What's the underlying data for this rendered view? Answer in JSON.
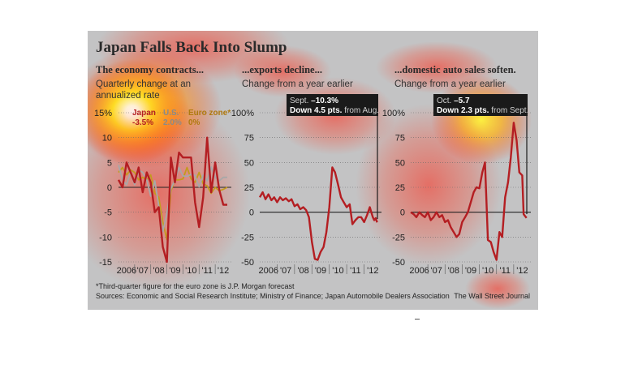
{
  "title": "Japan Falls Back Into Slump",
  "footnote": "*Third-quarter figure for the euro zone is J.P. Morgan forecast",
  "sources": "Sources: Economic and Social Research Institute; Ministry of Finance; Japan Automobile Dealers Association",
  "credit": "The Wall Street Journal",
  "colors": {
    "background": "#c3c3c4",
    "japan": "#b41e22",
    "us": "#a8a8a8",
    "eurozone": "#c49a1e",
    "callout": "#1a1a1a"
  },
  "chart_data": [
    {
      "type": "line",
      "title": "The economy contracts...",
      "subtitle": "Quarterly change at an annualized rate",
      "ylim": [
        -15,
        15
      ],
      "yticks": [
        15,
        10,
        5,
        0,
        -5,
        -10,
        -15
      ],
      "ytick_labels": [
        "15%",
        "10",
        "5",
        "0",
        "-5",
        "-10",
        "-15"
      ],
      "xtick_labels": [
        "2006",
        "'07",
        "'08",
        "'09",
        "'10",
        "'11",
        "'12"
      ],
      "xlim": [
        2006,
        2013
      ],
      "legend": [
        {
          "label": "Japan",
          "value": "-3.5%"
        },
        {
          "label": "U.S.",
          "value": "2.0%"
        },
        {
          "label": "Euro zone*",
          "value": "0%"
        }
      ],
      "series": [
        {
          "name": "Japan",
          "color": "#b41e22",
          "x": [
            2006.0,
            2006.25,
            2006.5,
            2006.75,
            2007.0,
            2007.25,
            2007.5,
            2007.75,
            2008.0,
            2008.25,
            2008.5,
            2008.75,
            2009.0,
            2009.25,
            2009.5,
            2009.75,
            2010.0,
            2010.25,
            2010.5,
            2010.75,
            2011.0,
            2011.25,
            2011.5,
            2011.75,
            2012.0,
            2012.25,
            2012.5,
            2012.75
          ],
          "y": [
            1.5,
            0,
            5,
            3,
            1,
            4,
            -1,
            3,
            1,
            -5,
            -4,
            -12,
            -15,
            6,
            1,
            7,
            6,
            6,
            6,
            -3,
            -8,
            -2,
            10,
            -1,
            5,
            -0.5,
            -3.5,
            -3.5
          ]
        },
        {
          "name": "U.S.",
          "color": "#a8a8a8",
          "x": [
            2006.0,
            2006.25,
            2006.5,
            2006.75,
            2007.0,
            2007.25,
            2007.5,
            2007.75,
            2008.0,
            2008.25,
            2008.5,
            2008.75,
            2009.0,
            2009.25,
            2009.5,
            2009.75,
            2010.0,
            2010.25,
            2010.5,
            2010.75,
            2011.0,
            2011.25,
            2011.5,
            2011.75,
            2012.0,
            2012.25,
            2012.5,
            2012.75
          ],
          "y": [
            4.5,
            1.5,
            0.5,
            3,
            0.5,
            3.5,
            3,
            1.5,
            -1.8,
            1.3,
            -3.7,
            -8.9,
            -5.3,
            -0.3,
            1.4,
            4,
            2.3,
            2.2,
            2.6,
            2.4,
            0.1,
            2.5,
            1.3,
            4.1,
            2,
            1.3,
            2,
            2
          ]
        },
        {
          "name": "Euro zone*",
          "color": "#c49a1e",
          "x": [
            2006.0,
            2006.25,
            2006.5,
            2006.75,
            2007.0,
            2007.25,
            2007.5,
            2007.75,
            2008.0,
            2008.25,
            2008.5,
            2008.75,
            2009.0,
            2009.25,
            2009.5,
            2009.75,
            2010.0,
            2010.25,
            2010.5,
            2010.75,
            2011.0,
            2011.25,
            2011.5,
            2011.75,
            2012.0,
            2012.25,
            2012.5,
            2012.75
          ],
          "y": [
            3,
            4,
            2.5,
            3.5,
            3,
            1.5,
            2,
            1.5,
            2.5,
            -1.2,
            -2,
            -7,
            -10.5,
            -0.8,
            1.5,
            1.5,
            1.7,
            4,
            1.7,
            1,
            3,
            0.7,
            0.3,
            -1.2,
            0,
            -0.7,
            -0.4,
            0
          ]
        }
      ]
    },
    {
      "type": "line",
      "title": "...exports decline...",
      "subtitle": "Change from a year earlier",
      "ylim": [
        -50,
        100
      ],
      "yticks": [
        100,
        75,
        50,
        25,
        0,
        -25,
        -50
      ],
      "ytick_labels": [
        "100%",
        "75",
        "50",
        "25",
        "0",
        "-25",
        "-50"
      ],
      "xtick_labels": [
        "2006",
        "'07",
        "'08",
        "'09",
        "'10",
        "'11",
        "'12"
      ],
      "xlim": [
        2006,
        2013
      ],
      "callout": {
        "line1_label": "Sept.",
        "line1_value": "–10.3%",
        "line2_bold": "Down 4.5 pts.",
        "line2_rest": "from Aug."
      },
      "series": [
        {
          "name": "Japan",
          "color": "#b41e22",
          "x": [
            2006.0,
            2006.17,
            2006.33,
            2006.5,
            2006.67,
            2006.83,
            2007.0,
            2007.17,
            2007.33,
            2007.5,
            2007.67,
            2007.83,
            2008.0,
            2008.17,
            2008.33,
            2008.5,
            2008.67,
            2008.83,
            2009.0,
            2009.17,
            2009.33,
            2009.5,
            2009.67,
            2009.83,
            2010.0,
            2010.17,
            2010.33,
            2010.5,
            2010.67,
            2010.83,
            2011.0,
            2011.17,
            2011.33,
            2011.5,
            2011.67,
            2011.83,
            2012.0,
            2012.17,
            2012.33,
            2012.5,
            2012.58,
            2012.67,
            2012.75
          ],
          "y": [
            15,
            20,
            13,
            18,
            12,
            15,
            10,
            15,
            12,
            14,
            11,
            13,
            6,
            8,
            3,
            5,
            2,
            -5,
            -30,
            -47,
            -48,
            -40,
            -35,
            -20,
            5,
            45,
            40,
            28,
            15,
            10,
            5,
            8,
            -12,
            -8,
            -5,
            -5,
            -10,
            -3,
            5,
            -5,
            -8,
            -6,
            -10.3
          ]
        }
      ]
    },
    {
      "type": "line",
      "title": "...domestic auto sales soften.",
      "subtitle": "Change from a year earlier",
      "ylim": [
        -50,
        100
      ],
      "yticks": [
        100,
        75,
        50,
        25,
        0,
        -25,
        -50
      ],
      "ytick_labels": [
        "100%",
        "75",
        "50",
        "25",
        "0",
        "-25",
        "-50"
      ],
      "xtick_labels": [
        "2006",
        "'07",
        "'08",
        "'09",
        "'10",
        "'11",
        "'12"
      ],
      "xlim": [
        2006,
        2013
      ],
      "callout": {
        "line1_label": "Oct.",
        "line1_value": "–5.7",
        "line2_bold": "Down 2.3 pts.",
        "line2_rest": "from Sept."
      },
      "series": [
        {
          "name": "Japan",
          "color": "#b41e22",
          "x": [
            2006.0,
            2006.17,
            2006.33,
            2006.5,
            2006.67,
            2006.83,
            2007.0,
            2007.17,
            2007.33,
            2007.5,
            2007.67,
            2007.83,
            2008.0,
            2008.17,
            2008.33,
            2008.5,
            2008.67,
            2008.83,
            2009.0,
            2009.17,
            2009.33,
            2009.5,
            2009.67,
            2009.83,
            2010.0,
            2010.17,
            2010.33,
            2010.5,
            2010.67,
            2010.83,
            2011.0,
            2011.17,
            2011.33,
            2011.5,
            2011.67,
            2011.83,
            2012.0,
            2012.17,
            2012.33,
            2012.5,
            2012.58,
            2012.67,
            2012.75
          ],
          "y": [
            0,
            -2,
            -5,
            0,
            -3,
            -5,
            0,
            -8,
            -5,
            0,
            -5,
            -3,
            -10,
            -8,
            -15,
            -20,
            -25,
            -22,
            -10,
            -5,
            0,
            10,
            20,
            25,
            24,
            40,
            50,
            -28,
            -30,
            -40,
            -48,
            -20,
            -25,
            15,
            30,
            55,
            90,
            72,
            40,
            37,
            -2,
            -4,
            -5.7
          ]
        }
      ]
    }
  ]
}
